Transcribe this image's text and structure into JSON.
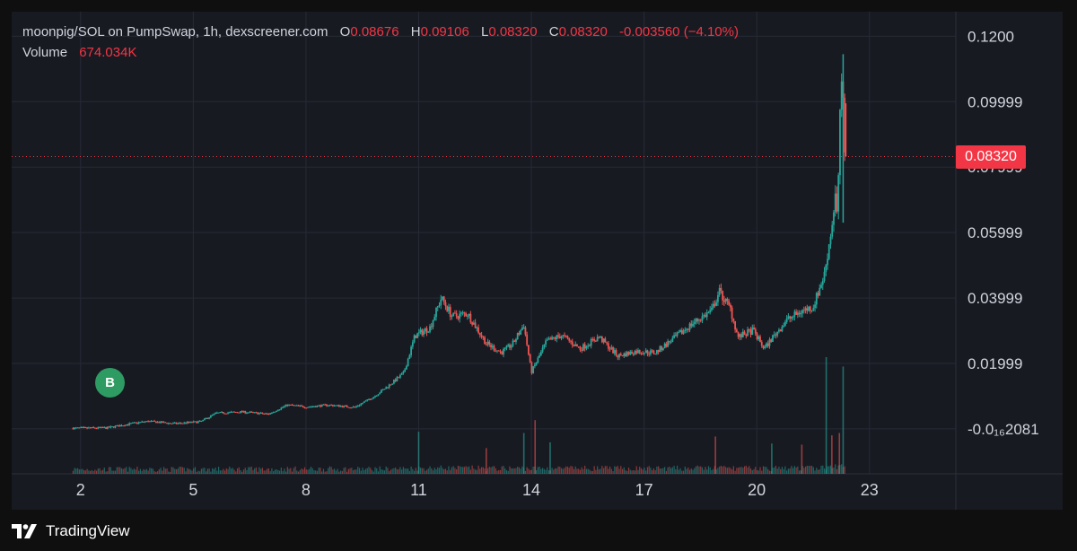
{
  "legend": {
    "pair": "moonpig/SOL on PumpSwap, 1h, dexscreener.com",
    "open_label": "O",
    "open": "0.08676",
    "high_label": "H",
    "high": "0.09106",
    "low_label": "L",
    "low": "0.08320",
    "close_label": "C",
    "close": "0.08320",
    "change": "-0.003560 (−4.10%)",
    "volume_label": "Volume",
    "volume": "674.034K"
  },
  "price_tag": "0.08320",
  "marker": "B",
  "footer": {
    "brand": "TradingView",
    "logo_icon": "tradingview-logo-icon"
  },
  "colors": {
    "up": "#26a69a",
    "down": "#ef5350",
    "accent": "#f23645",
    "marker": "#2e9b63"
  },
  "chart_data": {
    "type": "candlestick",
    "title": "moonpig/SOL on PumpSwap, 1h, dexscreener.com",
    "x_ticks": [
      "2",
      "5",
      "8",
      "11",
      "14",
      "17",
      "20",
      "23"
    ],
    "x_tick_values": [
      2,
      5,
      8,
      11,
      14,
      17,
      20,
      23
    ],
    "xlim": [
      0.5,
      25.3
    ],
    "y_ticks": [
      "0.1200",
      "0.09999",
      "0.07999",
      "0.05999",
      "0.03999",
      "0.01999",
      "-0.0₁₆2081"
    ],
    "y_tick_values": [
      0.12,
      0.09999,
      0.07999,
      0.05999,
      0.03999,
      0.01999,
      0.0
    ],
    "ylim": [
      -0.011,
      0.1275
    ],
    "last_price": 0.0832,
    "grid": true,
    "close_path": [
      [
        1.8,
        0.0002
      ],
      [
        2.7,
        0.0003
      ],
      [
        3.4,
        0.0017
      ],
      [
        3.8,
        0.0023
      ],
      [
        4.5,
        0.0016
      ],
      [
        5.2,
        0.0022
      ],
      [
        5.6,
        0.0048
      ],
      [
        6.3,
        0.0052
      ],
      [
        7.0,
        0.0045
      ],
      [
        7.5,
        0.0073
      ],
      [
        8.0,
        0.0067
      ],
      [
        8.6,
        0.0073
      ],
      [
        9.3,
        0.0066
      ],
      [
        9.8,
        0.0098
      ],
      [
        10.2,
        0.0132
      ],
      [
        10.6,
        0.017
      ],
      [
        10.9,
        0.0284
      ],
      [
        11.3,
        0.031
      ],
      [
        11.6,
        0.04
      ],
      [
        11.9,
        0.0343
      ],
      [
        12.3,
        0.0353
      ],
      [
        12.8,
        0.0261
      ],
      [
        13.2,
        0.0233
      ],
      [
        13.5,
        0.0259
      ],
      [
        13.8,
        0.0318
      ],
      [
        14.0,
        0.0173
      ],
      [
        14.4,
        0.0266
      ],
      [
        14.8,
        0.0286
      ],
      [
        15.3,
        0.0245
      ],
      [
        15.8,
        0.0281
      ],
      [
        16.3,
        0.0223
      ],
      [
        16.8,
        0.0237
      ],
      [
        17.3,
        0.0233
      ],
      [
        17.8,
        0.0277
      ],
      [
        18.3,
        0.0323
      ],
      [
        18.8,
        0.0361
      ],
      [
        19.0,
        0.042
      ],
      [
        19.3,
        0.0366
      ],
      [
        19.5,
        0.028
      ],
      [
        19.9,
        0.0301
      ],
      [
        20.2,
        0.0245
      ],
      [
        20.4,
        0.0276
      ],
      [
        20.8,
        0.0333
      ],
      [
        21.2,
        0.036
      ],
      [
        21.5,
        0.0373
      ],
      [
        21.8,
        0.0472
      ],
      [
        22.0,
        0.062
      ],
      [
        22.1,
        0.0724
      ],
      [
        22.15,
        0.062
      ],
      [
        22.23,
        0.105
      ],
      [
        22.3,
        0.099
      ],
      [
        22.35,
        0.0832
      ]
    ],
    "volume_spikes": [
      [
        11.0,
        0.36
      ],
      [
        12.8,
        0.22
      ],
      [
        13.8,
        0.35
      ],
      [
        14.1,
        0.46
      ],
      [
        14.5,
        0.27
      ],
      [
        18.9,
        0.32
      ],
      [
        20.4,
        0.26
      ],
      [
        21.2,
        0.25
      ],
      [
        21.85,
        1.0
      ],
      [
        22.0,
        0.33
      ],
      [
        22.3,
        0.92
      ],
      [
        22.2,
        0.35
      ]
    ]
  }
}
